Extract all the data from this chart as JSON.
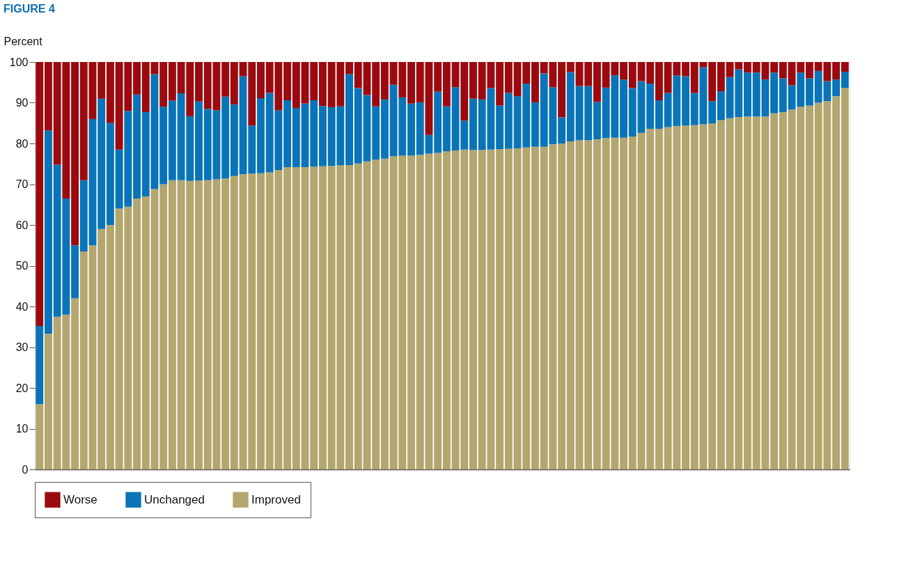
{
  "chart_data": {
    "type": "bar",
    "title": "FIGURE 4",
    "ylabel": "Percent",
    "stacked": true,
    "categories": [
      null,
      null,
      null,
      null,
      null,
      null,
      null,
      null,
      null,
      null,
      null,
      null,
      null,
      null,
      null,
      null,
      null,
      null,
      null,
      null,
      null,
      null,
      null,
      null,
      null,
      null,
      null,
      null,
      null,
      null,
      null,
      null,
      null,
      null,
      null,
      null,
      null,
      null,
      null,
      null,
      null,
      null,
      null,
      null,
      null,
      null,
      null,
      null,
      null,
      null,
      null,
      null,
      null,
      null,
      null,
      null,
      null,
      null,
      null,
      null,
      null,
      null,
      null,
      null,
      null,
      null,
      null,
      null,
      null,
      null,
      null,
      null,
      null,
      null,
      null,
      null,
      null,
      null,
      null,
      null,
      null,
      null,
      null,
      null,
      null,
      null,
      null,
      null,
      null,
      null,
      null,
      null
    ],
    "series": [
      {
        "name": "Improved",
        "color": "#b3a66e",
        "values": [
          16.0,
          33.3,
          37.5,
          38.0,
          42.0,
          53.5,
          55.0,
          59.0,
          60.0,
          64.0,
          64.5,
          66.5,
          67.0,
          68.8,
          70.0,
          71.0,
          71.0,
          70.8,
          70.9,
          71.0,
          71.2,
          71.4,
          72.0,
          72.5,
          72.6,
          72.7,
          72.9,
          73.5,
          74.2,
          74.2,
          74.2,
          74.3,
          74.4,
          74.5,
          74.6,
          74.7,
          75.1,
          75.6,
          76.0,
          76.3,
          76.9,
          77.0,
          77.0,
          77.2,
          77.5,
          77.7,
          78.1,
          78.3,
          78.5,
          78.4,
          78.4,
          78.5,
          78.6,
          78.7,
          78.8,
          79.0,
          79.2,
          79.2,
          79.8,
          80.0,
          80.5,
          80.8,
          80.8,
          81.0,
          81.3,
          81.4,
          81.4,
          81.7,
          82.6,
          83.6,
          83.6,
          84.0,
          84.3,
          84.4,
          84.5,
          84.7,
          84.9,
          85.7,
          86.2,
          86.5,
          86.6,
          86.6,
          86.6,
          87.4,
          87.7,
          88.3,
          89.0,
          89.3,
          90.0,
          90.4,
          91.6,
          93.6
        ]
      },
      {
        "name": "Unchanged",
        "color": "#0a74b8",
        "values": [
          19.2,
          49.9,
          37.3,
          28.5,
          13.0,
          17.5,
          31.0,
          32.0,
          25.0,
          14.5,
          23.5,
          25.5,
          20.7,
          28.2,
          19.0,
          19.5,
          21.3,
          15.9,
          19.4,
          17.5,
          16.9,
          20.1,
          17.6,
          24.0,
          11.8,
          18.4,
          19.5,
          14.6,
          16.4,
          14.5,
          15.6,
          16.3,
          14.8,
          14.4,
          14.5,
          22.3,
          18.5,
          16.3,
          13.1,
          14.5,
          17.5,
          14.3,
          12.8,
          12.9,
          4.6,
          15.0,
          11.0,
          15.5,
          7.1,
          12.6,
          12.4,
          15.1,
          10.7,
          13.7,
          12.8,
          15.7,
          10.9,
          18.0,
          14.0,
          6.4,
          17.0,
          13.3,
          13.3,
          9.2,
          12.4,
          15.3,
          14.3,
          11.9,
          12.7,
          11.1,
          7.0,
          8.4,
          12.4,
          12.1,
          7.9,
          14.0,
          5.5,
          7.1,
          10.1,
          11.7,
          10.8,
          10.8,
          9.1,
          10.0,
          8.3,
          6.0,
          8.4,
          6.7,
          7.8,
          4.9,
          4.1,
          4.0
        ]
      },
      {
        "name": "Worse",
        "color": "#9b0a0e",
        "values": [
          64.8,
          16.8,
          25.2,
          33.5,
          45.0,
          29.0,
          14.0,
          9.0,
          15.0,
          21.5,
          12.0,
          8.0,
          12.3,
          3.0,
          11.0,
          9.5,
          7.7,
          13.3,
          9.7,
          11.5,
          11.9,
          8.5,
          10.4,
          3.5,
          15.6,
          8.9,
          7.6,
          11.9,
          9.4,
          11.3,
          10.2,
          9.4,
          10.8,
          11.1,
          10.9,
          3.0,
          6.4,
          8.1,
          10.9,
          9.2,
          5.6,
          8.7,
          10.2,
          9.9,
          17.9,
          7.3,
          10.9,
          6.2,
          14.4,
          9.0,
          9.2,
          6.4,
          10.7,
          7.6,
          8.4,
          5.3,
          9.9,
          2.8,
          6.2,
          13.6,
          2.5,
          5.9,
          5.9,
          9.8,
          6.3,
          3.3,
          4.3,
          6.4,
          4.7,
          5.3,
          9.4,
          7.6,
          3.3,
          3.5,
          7.6,
          1.3,
          9.6,
          7.2,
          3.7,
          1.8,
          2.6,
          2.6,
          4.3,
          2.6,
          4.0,
          5.7,
          2.6,
          4.0,
          2.2,
          4.7,
          4.3,
          2.4
        ]
      }
    ],
    "ylim": [
      0,
      100
    ],
    "yticks": [
      0,
      10,
      20,
      30,
      40,
      50,
      60,
      70,
      80,
      90,
      100
    ],
    "grid": false,
    "legend": "bottom"
  }
}
